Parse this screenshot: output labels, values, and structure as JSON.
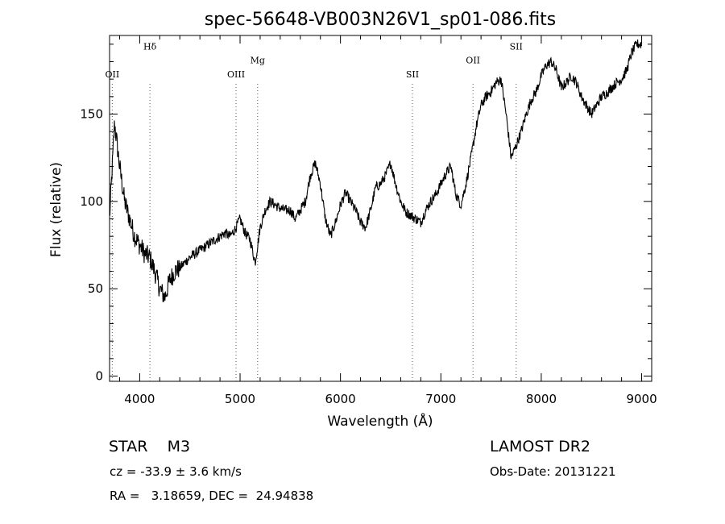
{
  "info": {
    "class_label": "STAR",
    "subclass": "M3",
    "survey": "LAMOST DR2",
    "cz": "cz = -33.9 ± 3.6 km/s",
    "obs_date": "Obs-Date: 20131221",
    "coords": "RA =   3.18659, DEC =  24.94838"
  },
  "chart_data": {
    "type": "line",
    "title": "spec-56648-VB003N26V1_sp01-086.fits",
    "xlabel": "Wavelength (Å)",
    "ylabel": "Flux (relative)",
    "xlim": [
      3700,
      9100
    ],
    "ylim": [
      -3,
      195
    ],
    "x_ticks": [
      4000,
      5000,
      6000,
      7000,
      8000,
      9000
    ],
    "y_ticks": [
      0,
      50,
      100,
      150
    ],
    "grid": false,
    "series": [
      {
        "x": [
          3700,
          3750,
          3800,
          3850,
          3900,
          3950,
          4000,
          4050,
          4100,
          4150,
          4200,
          4250,
          4300,
          4350,
          4400,
          4450,
          4500,
          4550,
          4600,
          4650,
          4700,
          4750,
          4800,
          4850,
          4900,
          4950,
          5000,
          5050,
          5100,
          5150,
          5200,
          5250,
          5300,
          5350,
          5400,
          5450,
          5500,
          5550,
          5600,
          5650,
          5700,
          5750,
          5800,
          5850,
          5900,
          5950,
          6000,
          6050,
          6100,
          6150,
          6200,
          6250,
          6300,
          6350,
          6400,
          6450,
          6500,
          6550,
          6600,
          6650,
          6700,
          6750,
          6800,
          6850,
          6900,
          6950,
          7000,
          7050,
          7100,
          7150,
          7200,
          7250,
          7300,
          7350,
          7400,
          7450,
          7500,
          7550,
          7600,
          7650,
          7700,
          7750,
          7800,
          7850,
          7900,
          7950,
          8000,
          8050,
          8100,
          8150,
          8200,
          8250,
          8300,
          8350,
          8400,
          8450,
          8500,
          8550,
          8600,
          8650,
          8700,
          8750,
          8800,
          8850,
          8900,
          8950,
          9000
        ],
        "y": [
          90,
          145,
          120,
          100,
          90,
          80,
          75,
          70,
          68,
          60,
          50,
          45,
          55,
          60,
          62,
          65,
          68,
          70,
          72,
          74,
          76,
          78,
          80,
          82,
          80,
          84,
          90,
          82,
          78,
          65,
          85,
          95,
          100,
          98,
          96,
          95,
          95,
          90,
          95,
          100,
          115,
          122,
          110,
          90,
          80,
          88,
          98,
          105,
          100,
          95,
          88,
          85,
          95,
          108,
          110,
          115,
          122,
          110,
          100,
          94,
          92,
          90,
          88,
          95,
          100,
          104,
          110,
          116,
          120,
          104,
          98,
          110,
          125,
          142,
          155,
          160,
          163,
          168,
          170,
          150,
          125,
          132,
          140,
          150,
          158,
          163,
          172,
          178,
          180,
          175,
          165,
          168,
          172,
          168,
          160,
          155,
          150,
          155,
          160,
          162,
          165,
          168,
          170,
          175,
          185,
          190,
          190
        ]
      }
    ],
    "line_markers": [
      {
        "label": "OII",
        "x": 3727,
        "label_y": 171
      },
      {
        "label": "Hδ",
        "x": 4102,
        "label_y": 187
      },
      {
        "label": "OIII",
        "x": 4960,
        "label_y": 171
      },
      {
        "label": "Mg",
        "x": 5175,
        "label_y": 179
      },
      {
        "label": "SII",
        "x": 6717,
        "label_y": 171
      },
      {
        "label": "OII",
        "x": 7320,
        "label_y": 179
      },
      {
        "label": "SII",
        "x": 7750,
        "label_y": 187
      }
    ]
  }
}
